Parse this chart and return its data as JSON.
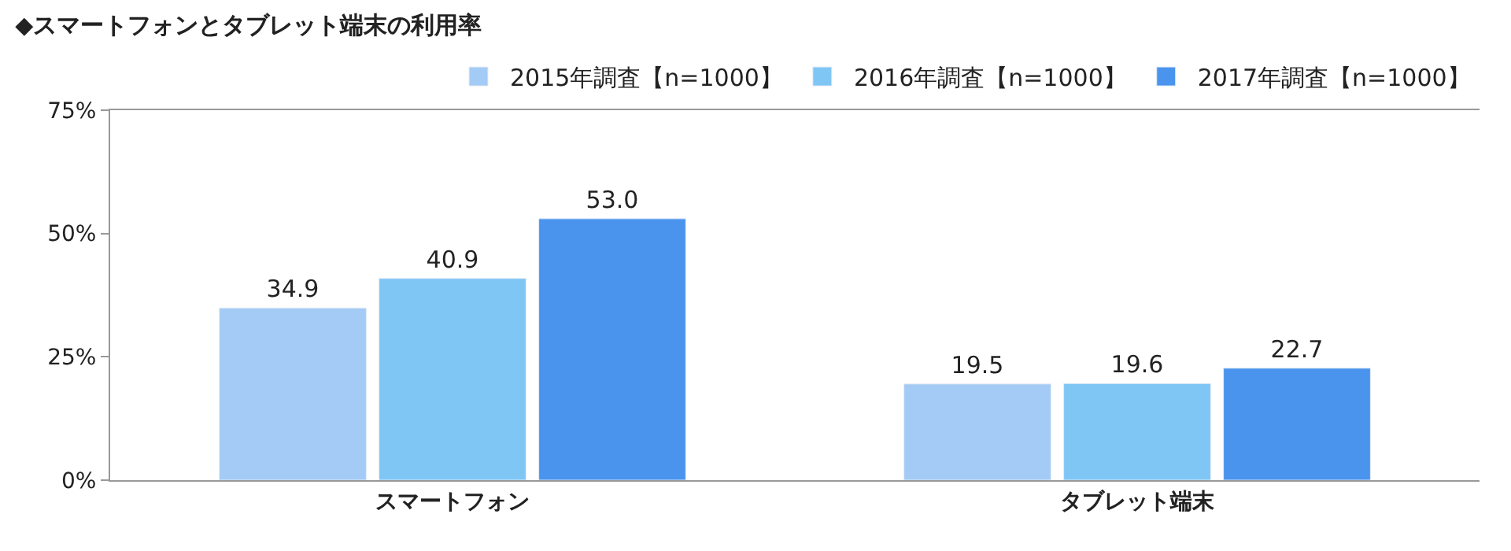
{
  "chart_data": {
    "type": "bar",
    "title": "◆スマートフォンとタブレット端末の利用率",
    "categories": [
      "スマートフォン",
      "タブレット端末"
    ],
    "series": [
      {
        "name": "2015年調査【n=1000】",
        "color": "#a3cbf5",
        "values": [
          34.9,
          19.5
        ],
        "value_labels": [
          "34.9",
          "19.5"
        ]
      },
      {
        "name": "2016年調査【n=1000】",
        "color": "#7fc6f5",
        "values": [
          40.9,
          19.6
        ],
        "value_labels": [
          "40.9",
          "19.6"
        ]
      },
      {
        "name": "2017年調査【n=1000】",
        "color": "#4a94ee",
        "values": [
          53.0,
          22.7
        ],
        "value_labels": [
          "53.0",
          "22.7"
        ]
      }
    ],
    "ylim": [
      0,
      75
    ],
    "yticks": [
      {
        "value": 0,
        "label": "0%"
      },
      {
        "value": 25,
        "label": "25%"
      },
      {
        "value": 50,
        "label": "50%"
      },
      {
        "value": 75,
        "label": "75%"
      }
    ],
    "legend": "top right"
  }
}
